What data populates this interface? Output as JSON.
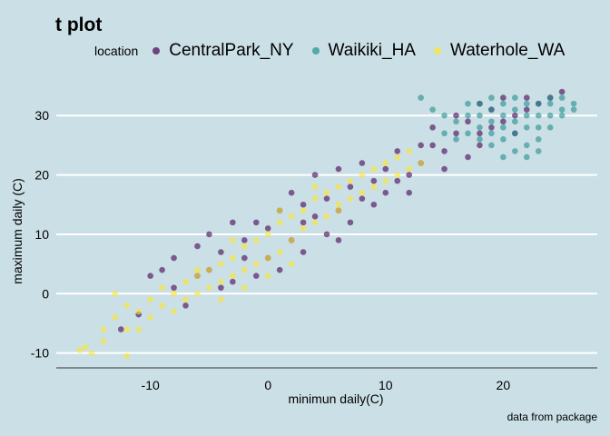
{
  "chart_data": {
    "type": "scatter",
    "title": "t plot",
    "xlabel": "minimun daily(C)",
    "ylabel": "maximum daily (C)",
    "caption": "data from package",
    "legend_title": "location",
    "legend_position": "top",
    "xlim": [
      -18,
      28
    ],
    "ylim": [
      -12.5,
      36
    ],
    "x_ticks": [
      -10,
      0,
      10,
      20
    ],
    "y_ticks": [
      -10,
      0,
      10,
      20,
      30
    ],
    "grid": "horizontal major, white",
    "series": [
      {
        "name": "CentralPark_NY",
        "color": "#440154",
        "points": [
          [
            -12.5,
            -6
          ],
          [
            -11,
            -3.5
          ],
          [
            -10,
            3
          ],
          [
            -8,
            1
          ],
          [
            -8,
            6
          ],
          [
            -7,
            -2
          ],
          [
            -6,
            8
          ],
          [
            -6,
            3
          ],
          [
            -5,
            4
          ],
          [
            -5,
            10
          ],
          [
            -4,
            7
          ],
          [
            -3,
            2
          ],
          [
            -3,
            12
          ],
          [
            -2,
            6
          ],
          [
            -2,
            9
          ],
          [
            -1,
            12
          ],
          [
            -1,
            3
          ],
          [
            0,
            6
          ],
          [
            0,
            11
          ],
          [
            1,
            4
          ],
          [
            1,
            14
          ],
          [
            2,
            9
          ],
          [
            2,
            17
          ],
          [
            3,
            12
          ],
          [
            3,
            7
          ],
          [
            4,
            13
          ],
          [
            4,
            20
          ],
          [
            5,
            10
          ],
          [
            5,
            16
          ],
          [
            6,
            14
          ],
          [
            6,
            21
          ],
          [
            7,
            12
          ],
          [
            7,
            18
          ],
          [
            8,
            16
          ],
          [
            8,
            22
          ],
          [
            9,
            19
          ],
          [
            9,
            15
          ],
          [
            10,
            21
          ],
          [
            10,
            17
          ],
          [
            11,
            19
          ],
          [
            11,
            24
          ],
          [
            12,
            20
          ],
          [
            13,
            25
          ],
          [
            13,
            22
          ],
          [
            14,
            25
          ],
          [
            14,
            28
          ],
          [
            15,
            24
          ],
          [
            16,
            27
          ],
          [
            16,
            30
          ],
          [
            17,
            29
          ],
          [
            17,
            23
          ],
          [
            18,
            27
          ],
          [
            18,
            32
          ],
          [
            19,
            28
          ],
          [
            19,
            31
          ],
          [
            20,
            29
          ],
          [
            20,
            33
          ],
          [
            21,
            30
          ],
          [
            21,
            27
          ],
          [
            22,
            31
          ],
          [
            22,
            33
          ],
          [
            23,
            32
          ],
          [
            24,
            33
          ],
          [
            25,
            34
          ],
          [
            -9,
            4
          ],
          [
            -4,
            1
          ],
          [
            3,
            15
          ],
          [
            6,
            9
          ],
          [
            12,
            17
          ],
          [
            15,
            21
          ],
          [
            18,
            25
          ]
        ]
      },
      {
        "name": "Waikiki_HA",
        "color": "#21908c",
        "points": [
          [
            13,
            33
          ],
          [
            14,
            31
          ],
          [
            15,
            27
          ],
          [
            15,
            30
          ],
          [
            16,
            26
          ],
          [
            16,
            29
          ],
          [
            17,
            27
          ],
          [
            17,
            30
          ],
          [
            17,
            32
          ],
          [
            18,
            26
          ],
          [
            18,
            28
          ],
          [
            18,
            30
          ],
          [
            18,
            32
          ],
          [
            19,
            25
          ],
          [
            19,
            27
          ],
          [
            19,
            29
          ],
          [
            19,
            31
          ],
          [
            19,
            33
          ],
          [
            20,
            26
          ],
          [
            20,
            28
          ],
          [
            20,
            30
          ],
          [
            20,
            32
          ],
          [
            21,
            24
          ],
          [
            21,
            27
          ],
          [
            21,
            29
          ],
          [
            21,
            31
          ],
          [
            21,
            33
          ],
          [
            22,
            25
          ],
          [
            22,
            28
          ],
          [
            22,
            30
          ],
          [
            22,
            32
          ],
          [
            23,
            26
          ],
          [
            23,
            28
          ],
          [
            23,
            30
          ],
          [
            23,
            32
          ],
          [
            24,
            28
          ],
          [
            24,
            30
          ],
          [
            24,
            32
          ],
          [
            24,
            33
          ],
          [
            25,
            30
          ],
          [
            25,
            31
          ],
          [
            25,
            33
          ],
          [
            26,
            32
          ],
          [
            26,
            31
          ],
          [
            20,
            23
          ],
          [
            22,
            23
          ],
          [
            23,
            24
          ]
        ]
      },
      {
        "name": "Waterhole_WA",
        "color": "#fde725",
        "points": [
          [
            -16,
            -9.5
          ],
          [
            -15.5,
            -9
          ],
          [
            -15,
            -10
          ],
          [
            -14,
            -6
          ],
          [
            -14,
            -8
          ],
          [
            -13,
            -4
          ],
          [
            -13,
            0
          ],
          [
            -12,
            -10.5
          ],
          [
            -12,
            -6
          ],
          [
            -12,
            -2
          ],
          [
            -11,
            -3
          ],
          [
            -11,
            -6
          ],
          [
            -10,
            -1
          ],
          [
            -10,
            -4
          ],
          [
            -9,
            -2
          ],
          [
            -9,
            1
          ],
          [
            -8,
            0
          ],
          [
            -8,
            -3
          ],
          [
            -7,
            2
          ],
          [
            -7,
            -1
          ],
          [
            -6,
            3
          ],
          [
            -6,
            0
          ],
          [
            -5,
            1
          ],
          [
            -5,
            4
          ],
          [
            -4,
            2
          ],
          [
            -4,
            5
          ],
          [
            -3,
            3
          ],
          [
            -3,
            6
          ],
          [
            -2,
            4
          ],
          [
            -2,
            8
          ],
          [
            -1,
            5
          ],
          [
            -1,
            9
          ],
          [
            0,
            6
          ],
          [
            0,
            10
          ],
          [
            1,
            7
          ],
          [
            1,
            12
          ],
          [
            2,
            9
          ],
          [
            2,
            13
          ],
          [
            3,
            11
          ],
          [
            3,
            14
          ],
          [
            4,
            12
          ],
          [
            4,
            16
          ],
          [
            5,
            13
          ],
          [
            5,
            17
          ],
          [
            6,
            15
          ],
          [
            6,
            18
          ],
          [
            7,
            16
          ],
          [
            7,
            19
          ],
          [
            8,
            17
          ],
          [
            8,
            20
          ],
          [
            9,
            18
          ],
          [
            9,
            21
          ],
          [
            10,
            19
          ],
          [
            10,
            22
          ],
          [
            11,
            20
          ],
          [
            11,
            23
          ],
          [
            12,
            21
          ],
          [
            12,
            24
          ],
          [
            13,
            22
          ],
          [
            -4,
            -1
          ],
          [
            -2,
            1
          ],
          [
            0,
            3
          ],
          [
            2,
            5
          ],
          [
            -6,
            4
          ],
          [
            -3,
            9
          ],
          [
            1,
            14
          ],
          [
            4,
            18
          ],
          [
            6,
            14
          ]
        ]
      }
    ]
  }
}
